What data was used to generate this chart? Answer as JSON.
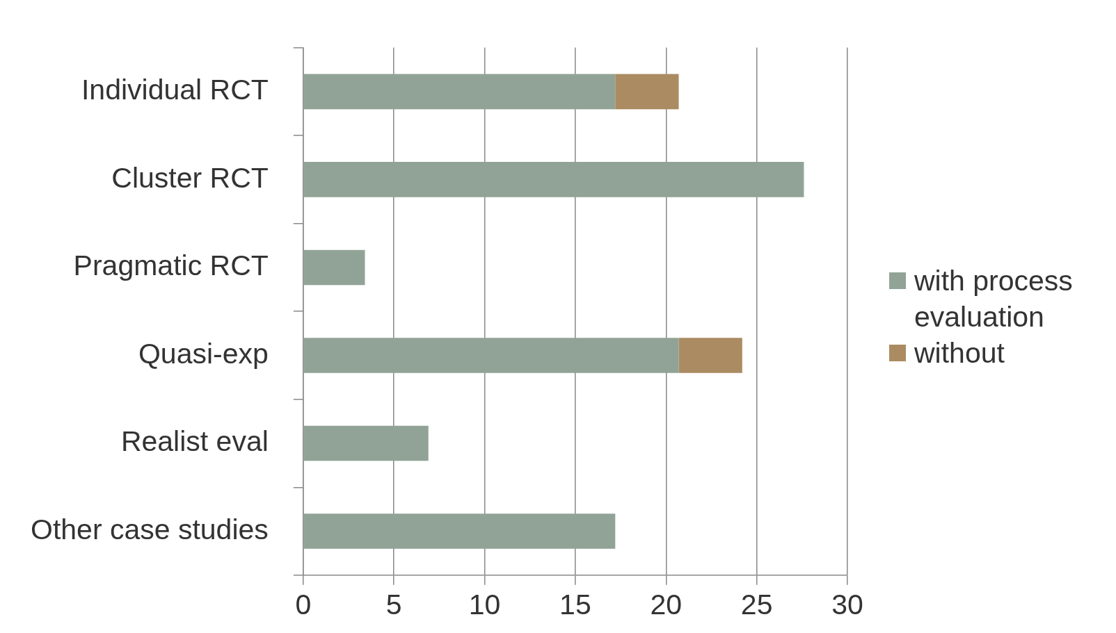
{
  "chart_data": {
    "type": "bar",
    "orientation": "horizontal",
    "stacked": true,
    "categories": [
      "Individual RCT",
      "Cluster RCT",
      "Pragmatic RCT",
      "Quasi-exp",
      "Realist eval",
      "Other case studies"
    ],
    "series": [
      {
        "name": "with process evaluation",
        "color": "#91a396",
        "values": [
          17.2,
          27.6,
          3.4,
          20.7,
          6.9,
          17.2
        ]
      },
      {
        "name": "without",
        "color": "#ab8b62",
        "values": [
          3.5,
          null,
          null,
          3.5,
          null,
          null
        ]
      }
    ],
    "xlim": [
      0,
      30
    ],
    "xticks": [
      0,
      5,
      10,
      15,
      20,
      25,
      30
    ],
    "grid": "x",
    "legend": "right"
  }
}
